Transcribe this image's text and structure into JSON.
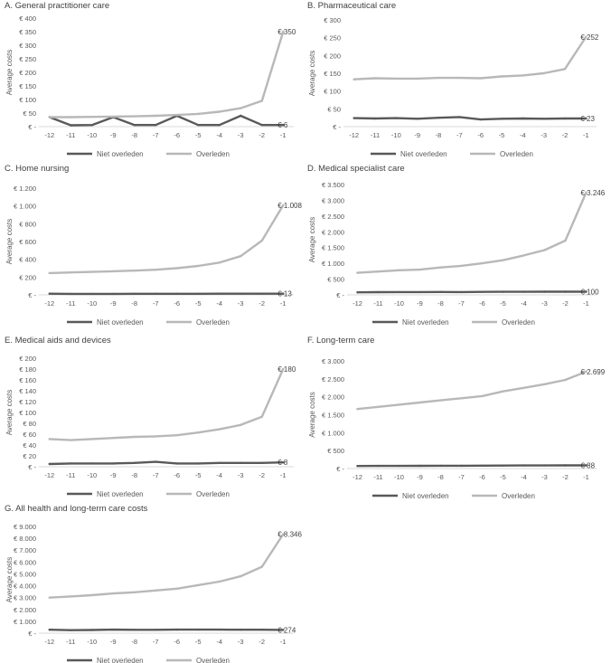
{
  "colors": {
    "niet": "#595959",
    "overleden": "#b8b8b8",
    "axis": "#d9d9d9",
    "text": "#595959",
    "title": "#404040"
  },
  "chart_data": [
    {
      "type": "line",
      "title": "A. General practitioner care",
      "ylabel": "Average costs",
      "categories": [
        "-12",
        "-11",
        "-10",
        "-9",
        "-8",
        "-7",
        "-6",
        "-5",
        "-4",
        "-3",
        "-2",
        "-1"
      ],
      "yticks": [
        "€ -",
        "€ 50",
        "€ 100",
        "€ 150",
        "€ 200",
        "€ 250",
        "€ 300",
        "€ 350",
        "€ 400"
      ],
      "ylim": [
        0,
        400
      ],
      "series": [
        {
          "name": "Niet overleden",
          "values": [
            35,
            5,
            6,
            35,
            6,
            6,
            40,
            6,
            6,
            40,
            6,
            6
          ],
          "end_label": "€ 6"
        },
        {
          "name": "Overleden",
          "values": [
            35,
            35,
            36,
            37,
            38,
            40,
            43,
            47,
            55,
            68,
            95,
            350
          ],
          "end_label": "€ 350"
        }
      ]
    },
    {
      "type": "line",
      "title": "B. Pharmaceutical care",
      "ylabel": "Average costs",
      "categories": [
        "-12",
        "-11",
        "-10",
        "-9",
        "-8",
        "-7",
        "-6",
        "-5",
        "-4",
        "-3",
        "-2",
        "-1"
      ],
      "yticks": [
        "€ -",
        "€ 50",
        "€ 100",
        "€ 150",
        "€ 200",
        "€ 250",
        "€ 300"
      ],
      "ylim": [
        0,
        300
      ],
      "series": [
        {
          "name": "Niet overleden",
          "values": [
            24,
            23,
            24,
            22,
            25,
            27,
            20,
            22,
            23,
            22,
            23,
            23
          ],
          "end_label": "€ 23"
        },
        {
          "name": "Overleden",
          "values": [
            133,
            136,
            135,
            135,
            137,
            137,
            136,
            141,
            144,
            150,
            162,
            252
          ],
          "end_label": "€ 252"
        }
      ]
    },
    {
      "type": "line",
      "title": "C. Home nursing",
      "ylabel": "Average costs",
      "categories": [
        "-12",
        "-11",
        "-10",
        "-9",
        "-8",
        "-7",
        "-6",
        "-5",
        "-4",
        "-3",
        "-2",
        "-1"
      ],
      "yticks": [
        "€ -",
        "€ 200",
        "€ 400",
        "€ 600",
        "€ 800",
        "€ 1.000",
        "€ 1.200"
      ],
      "ylim": [
        0,
        1200
      ],
      "series": [
        {
          "name": "Niet overleden",
          "values": [
            13,
            11,
            11,
            11,
            12,
            12,
            12,
            12,
            13,
            13,
            13,
            13
          ],
          "end_label": "€ 13"
        },
        {
          "name": "Overleden",
          "values": [
            245,
            252,
            258,
            265,
            273,
            283,
            300,
            325,
            363,
            435,
            610,
            1008
          ],
          "end_label": "€ 1.008"
        }
      ]
    },
    {
      "type": "line",
      "title": "D. Medical specialist care",
      "ylabel": "Average costs",
      "categories": [
        "-12",
        "-11",
        "-10",
        "-9",
        "-8",
        "-7",
        "-6",
        "-5",
        "-4",
        "-3",
        "-2",
        "-1"
      ],
      "yticks": [
        "€ -",
        "€ 500",
        "€ 1.000",
        "€ 1.500",
        "€ 2.000",
        "€ 2.500",
        "€ 3.000",
        "€ 3.500"
      ],
      "ylim": [
        0,
        3500
      ],
      "series": [
        {
          "name": "Niet overleden",
          "values": [
            80,
            85,
            90,
            88,
            92,
            90,
            95,
            97,
            98,
            100,
            100,
            100
          ],
          "end_label": "€ 100"
        },
        {
          "name": "Overleden",
          "values": [
            700,
            740,
            780,
            800,
            870,
            920,
            1000,
            1100,
            1250,
            1420,
            1720,
            3246
          ],
          "end_label": "€ 3.246"
        }
      ]
    },
    {
      "type": "line",
      "title": "E. Medical aids and devices",
      "ylabel": "Average costs",
      "categories": [
        "-12",
        "-11",
        "-10",
        "-9",
        "-8",
        "-7",
        "-6",
        "-5",
        "-4",
        "-3",
        "-2",
        "-1"
      ],
      "yticks": [
        "€ -",
        "€ 20",
        "€ 40",
        "€ 60",
        "€ 80",
        "€ 100",
        "€ 120",
        "€ 140",
        "€ 160",
        "€ 180",
        "€ 200"
      ],
      "ylim": [
        0,
        200
      ],
      "series": [
        {
          "name": "Niet overleden",
          "values": [
            5,
            6,
            6,
            6,
            7,
            9,
            6,
            6,
            7,
            7,
            7,
            8
          ],
          "end_label": "€ 8"
        },
        {
          "name": "Overleden",
          "values": [
            51,
            49,
            51,
            53,
            55,
            56,
            58,
            63,
            69,
            77,
            92,
            180
          ],
          "end_label": "€ 180"
        }
      ]
    },
    {
      "type": "line",
      "title": "F. Long-term care",
      "ylabel": "Average costs",
      "categories": [
        "-12",
        "-11",
        "-10",
        "-9",
        "-8",
        "-7",
        "-6",
        "-5",
        "-4",
        "-3",
        "-2",
        "-1"
      ],
      "yticks": [
        "€ -",
        "€ 500",
        "€ 1.000",
        "€ 1.500",
        "€ 2.000",
        "€ 2.500",
        "€ 3.000"
      ],
      "ylim": [
        0,
        3000
      ],
      "series": [
        {
          "name": "Niet overleden",
          "values": [
            70,
            72,
            74,
            75,
            77,
            78,
            80,
            83,
            85,
            86,
            87,
            88
          ],
          "end_label": "€ 88"
        },
        {
          "name": "Overleden",
          "values": [
            1660,
            1720,
            1780,
            1840,
            1900,
            1960,
            2020,
            2150,
            2250,
            2350,
            2470,
            2699
          ],
          "end_label": "€ 2.699"
        }
      ]
    },
    {
      "type": "line",
      "title": "G. All health and long-term care costs",
      "ylabel": "Average costs",
      "categories": [
        "-12",
        "-11",
        "-10",
        "-9",
        "-8",
        "-7",
        "-6",
        "-5",
        "-4",
        "-3",
        "-2",
        "-1"
      ],
      "yticks": [
        "€ -",
        "€ 1.000",
        "€ 2.000",
        "€ 3.000",
        "€ 4.000",
        "€ 5.000",
        "€ 6.000",
        "€ 7.000",
        "€ 8.000",
        "€ 9.000"
      ],
      "ylim": [
        0,
        9000
      ],
      "series": [
        {
          "name": "Niet overleden",
          "values": [
            290,
            250,
            270,
            300,
            280,
            280,
            300,
            300,
            300,
            290,
            290,
            274
          ],
          "end_label": "€ 274"
        },
        {
          "name": "Overleden",
          "values": [
            3000,
            3100,
            3200,
            3350,
            3450,
            3600,
            3750,
            4050,
            4350,
            4800,
            5600,
            8346
          ],
          "end_label": "€ 8.346"
        }
      ]
    }
  ]
}
